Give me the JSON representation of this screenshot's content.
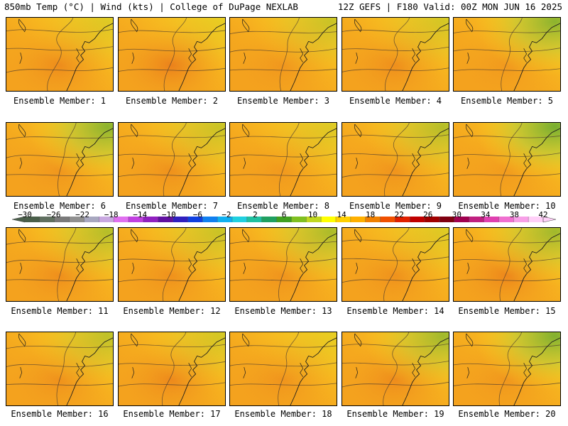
{
  "header": {
    "left": "850mb Temp (°C) | Wind (kts) | College of DuPage NEXLAB",
    "right": "12Z GEFS | F180 Valid: 00Z MON JUN 16 2025"
  },
  "colorbar": {
    "labels": [
      "−30",
      "−26",
      "−22",
      "−18",
      "−14",
      "−10",
      "−6",
      "−2",
      "2",
      "6",
      "10",
      "14",
      "18",
      "22",
      "26",
      "30",
      "34",
      "38",
      "42"
    ],
    "colors": [
      "#4a5f4a",
      "#607060",
      "#7a7a7a",
      "#909090",
      "#a8a8c0",
      "#c8a8e0",
      "#e070f0",
      "#c040e0",
      "#9020c0",
      "#6010a0",
      "#3020c0",
      "#1040e0",
      "#1080f0",
      "#10b0f0",
      "#20d0e0",
      "#20c0a0",
      "#20a060",
      "#40a020",
      "#80c020",
      "#c0d820",
      "#ffff00",
      "#ffd000",
      "#ffb000",
      "#f08000",
      "#f05000",
      "#e02000",
      "#c00000",
      "#a00000",
      "#800010",
      "#a00050",
      "#c02080",
      "#e040b0",
      "#f070d0",
      "#f8a0e8",
      "#ffd0f8"
    ]
  },
  "members": [
    {
      "label": "Ensemble Member: 1",
      "warm": 0.55,
      "cool": 0.15
    },
    {
      "label": "Ensemble Member: 2",
      "warm": 0.75,
      "cool": 0.1
    },
    {
      "label": "Ensemble Member: 3",
      "warm": 0.35,
      "cool": 0.25
    },
    {
      "label": "Ensemble Member: 4",
      "warm": 0.5,
      "cool": 0.2
    },
    {
      "label": "Ensemble Member: 5",
      "warm": 0.3,
      "cool": 0.55
    },
    {
      "label": "Ensemble Member: 6",
      "warm": 0.35,
      "cool": 0.55
    },
    {
      "label": "Ensemble Member: 7",
      "warm": 0.45,
      "cool": 0.25
    },
    {
      "label": "Ensemble Member: 8",
      "warm": 0.3,
      "cool": 0.15
    },
    {
      "label": "Ensemble Member: 9",
      "warm": 0.4,
      "cool": 0.35
    },
    {
      "label": "Ensemble Member: 10",
      "warm": 0.25,
      "cool": 0.65
    },
    {
      "label": "Ensemble Member: 11",
      "warm": 0.5,
      "cool": 0.35
    },
    {
      "label": "Ensemble Member: 12",
      "warm": 0.45,
      "cool": 0.25
    },
    {
      "label": "Ensemble Member: 13",
      "warm": 0.4,
      "cool": 0.4
    },
    {
      "label": "Ensemble Member: 14",
      "warm": 0.45,
      "cool": 0.15
    },
    {
      "label": "Ensemble Member: 15",
      "warm": 0.65,
      "cool": 0.45
    },
    {
      "label": "Ensemble Member: 16",
      "warm": 0.45,
      "cool": 0.3
    },
    {
      "label": "Ensemble Member: 17",
      "warm": 0.6,
      "cool": 0.2
    },
    {
      "label": "Ensemble Member: 18",
      "warm": 0.4,
      "cool": 0.1
    },
    {
      "label": "Ensemble Member: 19",
      "warm": 0.55,
      "cool": 0.45
    },
    {
      "label": "Ensemble Member: 20",
      "warm": 0.35,
      "cool": 0.6
    }
  ]
}
